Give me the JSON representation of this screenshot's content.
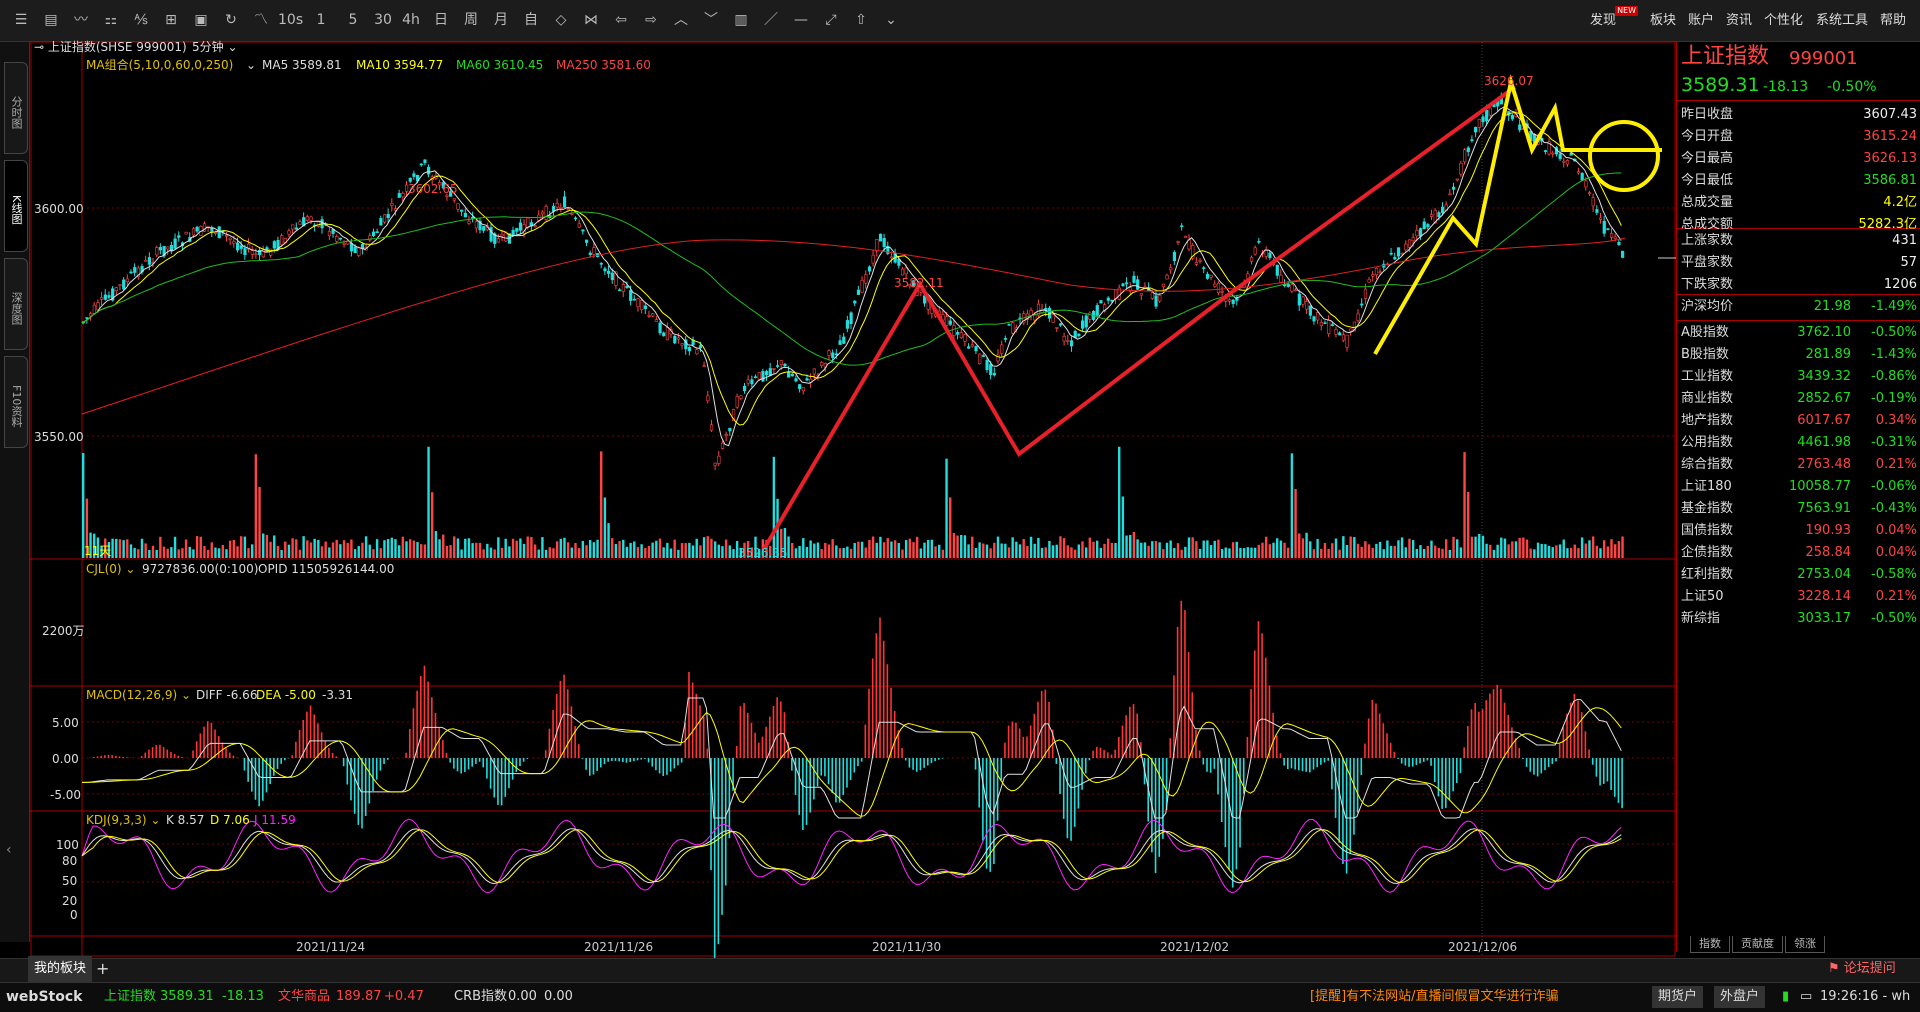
{
  "toolbar": {
    "icons": [
      "menu-icon",
      "list-icon",
      "line-chart-icon",
      "multi-icon",
      "calc-icon",
      "grid-icon",
      "save-icon",
      "refresh-icon",
      "draw-icon"
    ],
    "periods": [
      "10s",
      "1",
      "5",
      "30",
      "4h",
      "日",
      "周",
      "月",
      "自"
    ],
    "right_menu": {
      "discover": "发现",
      "new_badge": "NEW",
      "sector": "板块",
      "account": "账户",
      "news": "资讯",
      "personalize": "个性化",
      "tools": "系统工具",
      "help": "帮助"
    }
  },
  "left_tabs": [
    "分时图",
    "K线图",
    "深度图",
    "F10资料"
  ],
  "chart_header": {
    "symbol": "上证指数(SHSE 999001)",
    "period": "5分钟",
    "ma_label": "MA组合(5,10,0,60,0,250)",
    "ma5": "MA5 3589.81",
    "ma10": "MA10 3594.77",
    "ma60": "MA60 3610.45",
    "ma250": "MA250 3581.60"
  },
  "annotations": {
    "high1": "3602.65",
    "peak2": "3582.11",
    "low": "3526.35",
    "top": "3626.07",
    "days": "11天"
  },
  "vol_header": {
    "label": "CJL(0)",
    "value": "9727836.00(0:100)",
    "opid": "OPID 11505926144.00",
    "axis": "2200万"
  },
  "macd_header": {
    "label": "MACD(12,26,9)",
    "diff": "DIFF -6.66",
    "dea": "DEA -5.00",
    "macd": "-3.31"
  },
  "kdj_header": {
    "label": "KDJ(9,3,3)",
    "k": "K 8.57",
    "d": "D 7.06",
    "j": "J 11.59"
  },
  "y_axis": {
    "price": [
      "3600.00",
      "3550.00"
    ],
    "macd": [
      "5.00",
      "0.00",
      "-5.00"
    ],
    "kdj": [
      "100",
      "80",
      "50",
      "20",
      "0"
    ]
  },
  "dates": [
    "2021/11/24",
    "2021/11/26",
    "2021/11/30",
    "2021/12/02",
    "2021/12/06"
  ],
  "quote": {
    "name": "上证指数",
    "code": "999001",
    "price": "3589.31",
    "change": "-18.13",
    "pct": "-0.50%",
    "stats": [
      {
        "n": "昨日收盘",
        "v": "3607.43",
        "c": "wh"
      },
      {
        "n": "今日开盘",
        "v": "3615.24",
        "c": "up"
      },
      {
        "n": "今日最高",
        "v": "3626.13",
        "c": "up"
      },
      {
        "n": "今日最低",
        "v": "3586.81",
        "c": "dn"
      },
      {
        "n": "总成交量",
        "v": "4.2亿",
        "c": "yl"
      },
      {
        "n": "总成交额",
        "v": "5282.3亿",
        "c": "yl"
      }
    ],
    "breadth": [
      {
        "n": "上涨家数",
        "v": "431",
        "c": "wh"
      },
      {
        "n": "平盘家数",
        "v": "57",
        "c": "wh"
      },
      {
        "n": "下跌家数",
        "v": "1206",
        "c": "wh"
      }
    ],
    "hs_avg": {
      "n": "沪深均价",
      "v1": "21.98",
      "v2": "-1.49%"
    },
    "indices": [
      {
        "n": "A股指数",
        "v1": "3762.10",
        "v2": "-0.50%",
        "c": "dn"
      },
      {
        "n": "B股指数",
        "v1": "281.89",
        "v2": "-1.43%",
        "c": "dn"
      },
      {
        "n": "工业指数",
        "v1": "3439.32",
        "v2": "-0.86%",
        "c": "dn"
      },
      {
        "n": "商业指数",
        "v1": "2852.67",
        "v2": "-0.19%",
        "c": "dn"
      },
      {
        "n": "地产指数",
        "v1": "6017.67",
        "v2": "0.34%",
        "c": "up"
      },
      {
        "n": "公用指数",
        "v1": "4461.98",
        "v2": "-0.31%",
        "c": "dn"
      },
      {
        "n": "综合指数",
        "v1": "2763.48",
        "v2": "0.21%",
        "c": "up"
      },
      {
        "n": "上证180",
        "v1": "10058.77",
        "v2": "-0.06%",
        "c": "dn"
      },
      {
        "n": "基金指数",
        "v1": "7563.91",
        "v2": "-0.43%",
        "c": "dn"
      },
      {
        "n": "国债指数",
        "v1": "190.93",
        "v2": "0.04%",
        "c": "up"
      },
      {
        "n": "企债指数",
        "v1": "258.84",
        "v2": "0.04%",
        "c": "up"
      },
      {
        "n": "红利指数",
        "v1": "2753.04",
        "v2": "-0.58%",
        "c": "dn"
      },
      {
        "n": "上证50",
        "v1": "3228.14",
        "v2": "0.21%",
        "c": "up"
      },
      {
        "n": "新综指",
        "v1": "3033.17",
        "v2": "-0.50%",
        "c": "dn"
      }
    ]
  },
  "right_tabs": [
    "指数",
    "贡献度",
    "领涨"
  ],
  "bottom1": {
    "my_sector": "我的板块",
    "add": "+",
    "forum": "论坛提问"
  },
  "bottom2": {
    "logo": "webStock",
    "t1n": "上证指数",
    "t1v": "3589.31",
    "t1c": "-18.13",
    "t2n": "文华商品",
    "t2v": "189.87",
    "t2c": "+0.47",
    "t3n": "CRB指数",
    "t3v": "0.00",
    "t3c": "0.00",
    "notice": "[提醒]有不法网站/直播间假冒文华进行诈骗",
    "futures": "期货户",
    "forex": "外盘户",
    "clock": "19:26:16 - wh"
  },
  "colors": {
    "up": "#ff4444",
    "down": "#22dd22",
    "accent": "#cc0000",
    "cyan": "#22dddd",
    "yellow": "#ffff00",
    "magenta": "#ff22ff"
  }
}
